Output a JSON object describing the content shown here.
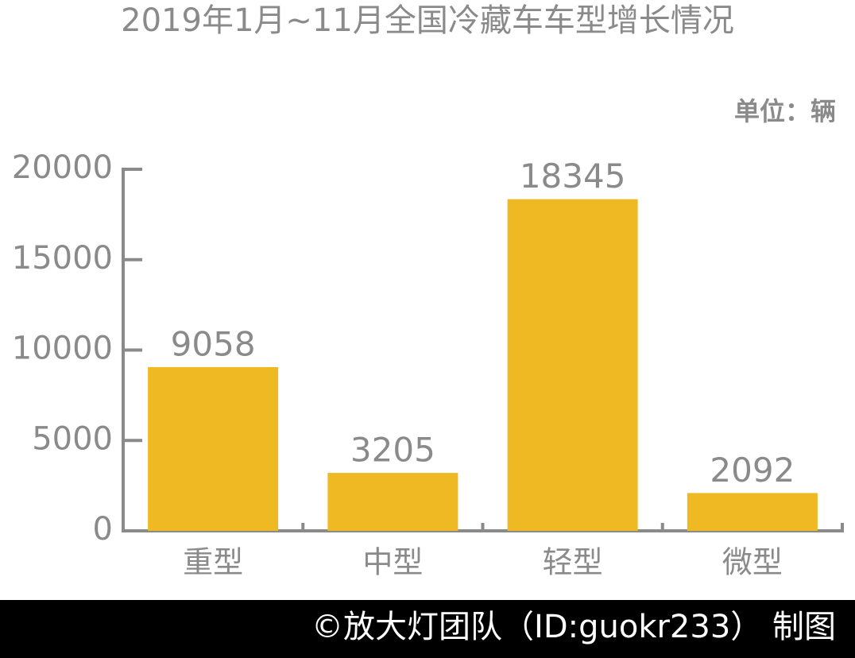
{
  "chart_data": {
    "type": "bar",
    "title": "2019年1月~11月全国冷藏车车型增长情况",
    "unit_label": "单位：辆",
    "categories": [
      "重型",
      "中型",
      "轻型",
      "微型"
    ],
    "values": [
      9058,
      3205,
      18345,
      2092
    ],
    "color": "#eeb923",
    "ylim": [
      0,
      20000
    ],
    "yticks": [
      0,
      5000,
      10000,
      15000,
      20000
    ],
    "grid": false,
    "footer": "©放大灯团队（ID:guokr233） 制图"
  }
}
